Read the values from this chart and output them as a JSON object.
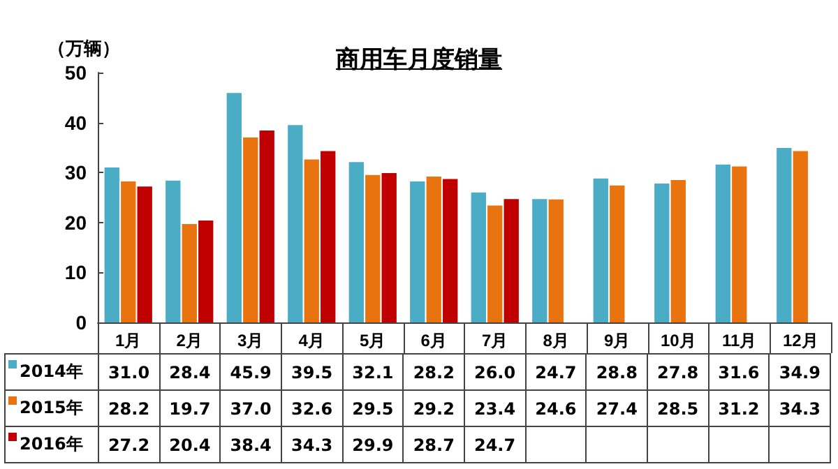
{
  "chart_data": {
    "type": "bar",
    "title": "商用车月度销量",
    "ylabel": "（万辆）",
    "categories": [
      "1月",
      "2月",
      "3月",
      "4月",
      "5月",
      "6月",
      "7月",
      "8月",
      "9月",
      "10月",
      "11月",
      "12月"
    ],
    "series": [
      {
        "name": "2014年",
        "color": "#4bacc6",
        "values": [
          31.0,
          28.4,
          45.9,
          39.5,
          32.1,
          28.2,
          26.0,
          24.7,
          28.8,
          27.8,
          31.6,
          34.9
        ],
        "value_labels": [
          "31.0",
          "28.4",
          "45.9",
          "39.5",
          "32.1",
          "28.2",
          "26.0",
          "24.7",
          "28.8",
          "27.8",
          "31.6",
          "34.9"
        ]
      },
      {
        "name": "2015年",
        "color": "#e8730f",
        "values": [
          28.2,
          19.7,
          37.0,
          32.6,
          29.5,
          29.2,
          23.4,
          24.6,
          27.4,
          28.5,
          31.2,
          34.3
        ],
        "value_labels": [
          "28.2",
          "19.7",
          "37.0",
          "32.6",
          "29.5",
          "29.2",
          "23.4",
          "24.6",
          "27.4",
          "28.5",
          "31.2",
          "34.3"
        ]
      },
      {
        "name": "2016年",
        "color": "#c00000",
        "values": [
          27.2,
          20.4,
          38.4,
          34.3,
          29.9,
          28.7,
          24.7,
          null,
          null,
          null,
          null,
          null
        ],
        "value_labels": [
          "27.2",
          "20.4",
          "38.4",
          "34.3",
          "29.9",
          "28.7",
          "24.7",
          null,
          null,
          null,
          null,
          null
        ]
      }
    ],
    "ylim": [
      0,
      50
    ],
    "yticks": [
      0,
      10,
      20,
      30,
      40,
      50
    ],
    "grid": false,
    "legend": "bottom left"
  }
}
